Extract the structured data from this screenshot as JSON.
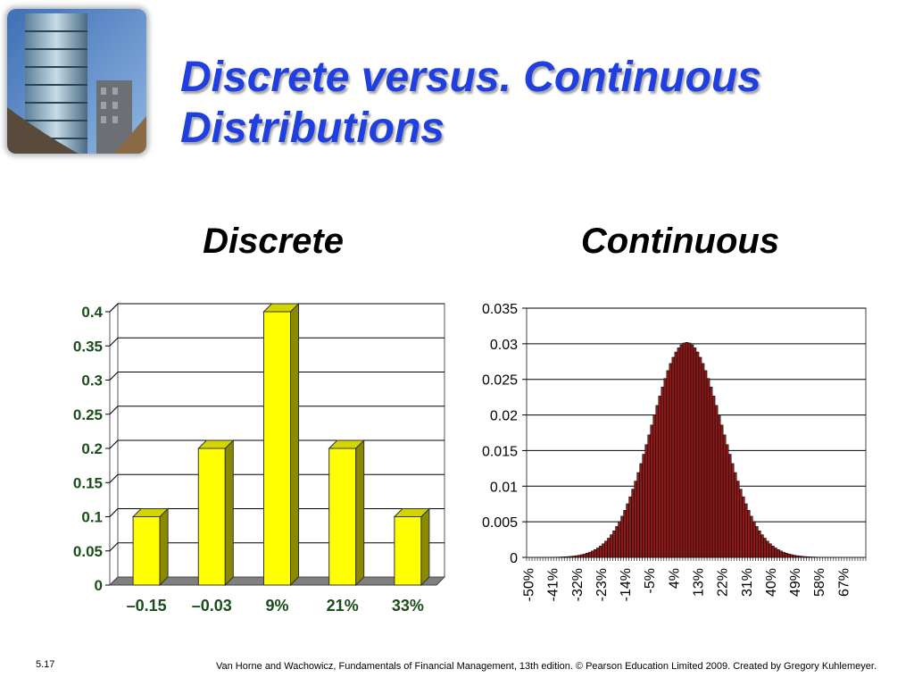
{
  "slide": {
    "title_line1": "Discrete versus. Continuous",
    "title_line2": "Distributions",
    "left_heading": "Discrete",
    "right_heading": "Continuous",
    "slide_number": "5.17",
    "footer": "Van Horne and Wachowicz, Fundamentals of Financial Management, 13th edition. © Pearson Education Limited 2009. Created by Gregory Kuhlemeyer."
  },
  "chart_data": [
    {
      "type": "bar",
      "title": "",
      "categories": [
        "–0.15",
        "–0.03",
        "9%",
        "21%",
        "33%"
      ],
      "values": [
        0.1,
        0.2,
        0.4,
        0.2,
        0.1
      ],
      "ylim": [
        0,
        0.4
      ],
      "yticks": [
        "0",
        "0.05",
        "0.1",
        "0.15",
        "0.2",
        "0.25",
        "0.3",
        "0.35",
        "0.4"
      ],
      "grid": true,
      "style": "3d",
      "bar_color": "#ffff00",
      "tick_label_color": "#1a4d1a"
    },
    {
      "type": "bar",
      "title": "",
      "x_start_percent": -50,
      "x_step_percent": 1,
      "mean_percent": 9,
      "stdev_percent": 13.2,
      "peak_value": 0.0302,
      "ylim": [
        0,
        0.035
      ],
      "yticks": [
        "0",
        "0.005",
        "0.01",
        "0.015",
        "0.02",
        "0.025",
        "0.03",
        "0.035"
      ],
      "xtick_labels": [
        "-50%",
        "-41%",
        "-32%",
        "-23%",
        "-14%",
        "-5%",
        "4%",
        "13%",
        "22%",
        "31%",
        "40%",
        "49%",
        "58%",
        "67%"
      ],
      "grid": true,
      "bar_color": "#8b1a1a"
    }
  ]
}
